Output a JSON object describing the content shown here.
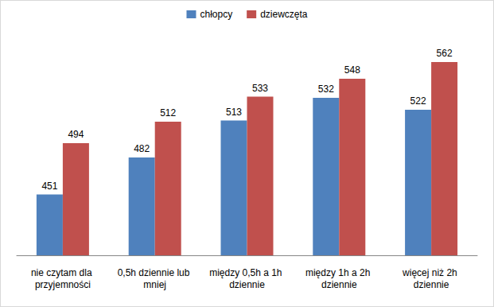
{
  "chart_data": {
    "type": "bar",
    "categories": [
      "nie czytam dla przyjemności",
      "0,5h dziennie lub mniej",
      "między 0,5h a 1h dziennie",
      "między 1h a 2h dziennie",
      "więcej niż 2h dziennie"
    ],
    "series": [
      {
        "name": "chłopcy",
        "color": "#4f81bd",
        "values": [
          451,
          482,
          513,
          532,
          522
        ]
      },
      {
        "name": "dziewczęta",
        "color": "#c0504d",
        "values": [
          494,
          512,
          533,
          548,
          562
        ]
      }
    ],
    "ylim": [
      400,
      600
    ],
    "grid": false,
    "legend": "top",
    "data_labels": true,
    "tick_labels": "x"
  }
}
